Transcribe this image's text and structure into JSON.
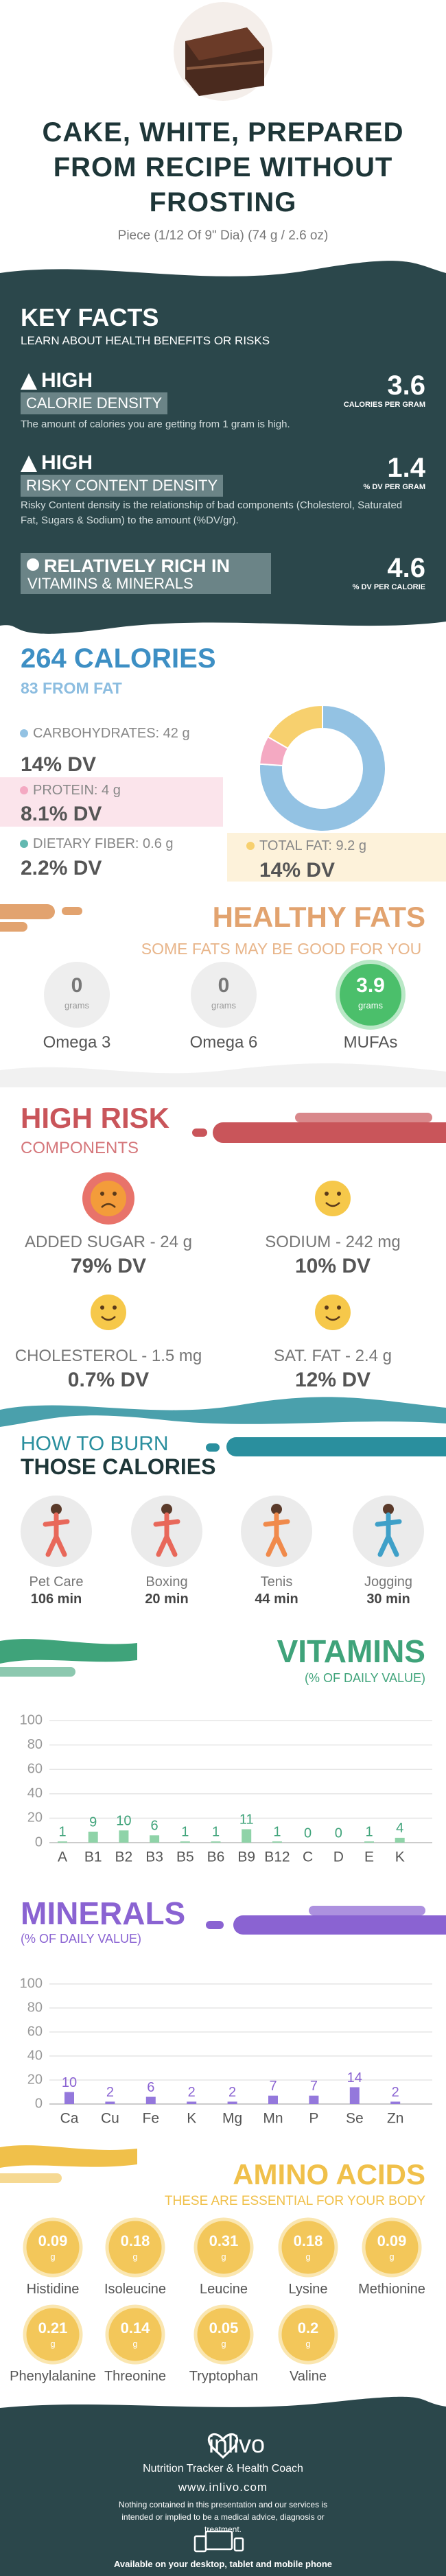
{
  "header": {
    "title": "CAKE, WHITE, PREPARED FROM RECIPE WITHOUT FROSTING",
    "serving": "Piece (1/12 Of 9\" Dia) (74 g / 2.6 oz)"
  },
  "key_facts": {
    "title": "KEY FACTS",
    "subtitle": "LEARN ABOUT HEALTH BENEFITS OR RISKS",
    "facts": [
      {
        "level": "HIGH",
        "name": "CALORIE DENSITY",
        "description": "The amount of calories you are getting from 1 gram is high.",
        "value": "3.6",
        "unit": "CALORIES PER GRAM"
      },
      {
        "level": "HIGH",
        "name": "RISKY CONTENT DENSITY",
        "description": "Risky Content density is the relationship of bad components (Cholesterol, Saturated Fat, Sugars & Sodium) to the amount (%DV/gr).",
        "value": "1.4",
        "unit": "% DV PER GRAM"
      },
      {
        "level": "RELATIVELY RICH IN",
        "name": "VITAMINS & MINERALS",
        "value": "4.6",
        "unit": "% DV PER CALORIE"
      }
    ]
  },
  "calories": {
    "title": "264 CALORIES",
    "subtitle": "83 FROM FAT",
    "nutrients": [
      {
        "label": "CARBOHYDRATES: 42 g",
        "dv": "14% DV"
      },
      {
        "label": "PROTEIN: 4 g",
        "dv": "8.1% DV"
      },
      {
        "label": "DIETARY FIBER: 0.6 g",
        "dv": "2.2% DV"
      },
      {
        "label": "TOTAL FAT: 9.2 g",
        "dv": "14% DV"
      }
    ]
  },
  "healthy_fats": {
    "title": "HEALTHY FATS",
    "subtitle": "SOME FATS MAY BE GOOD FOR YOU",
    "items": [
      {
        "value": "0",
        "unit": "grams",
        "name": "Omega 3"
      },
      {
        "value": "0",
        "unit": "grams",
        "name": "Omega 6"
      },
      {
        "value": "3.9",
        "unit": "grams",
        "name": "MUFAs"
      }
    ]
  },
  "high_risk": {
    "title": "HIGH RISK",
    "subtitle": "COMPONENTS",
    "items": [
      {
        "label": "ADDED SUGAR - 24 g",
        "dv": "79% DV"
      },
      {
        "label": "SODIUM - 242 mg",
        "dv": "10% DV"
      },
      {
        "label": "CHOLESTEROL - 1.5 mg",
        "dv": "0.7% DV"
      },
      {
        "label": "SAT. FAT - 2.4 g",
        "dv": "12% DV"
      }
    ]
  },
  "burn": {
    "title": "HOW TO BURN",
    "title2": "THOSE CALORIES",
    "activities": [
      {
        "name": "Pet Care",
        "time": "106 min"
      },
      {
        "name": "Boxing",
        "time": "20 min"
      },
      {
        "name": "Tenis",
        "time": "44 min"
      },
      {
        "name": "Jogging",
        "time": "30 min"
      }
    ]
  },
  "amino_acids": {
    "title": "AMINO ACIDS",
    "subtitle": "THESE ARE ESSENTIAL FOR YOUR BODY",
    "items": [
      {
        "value": "0.09",
        "unit": "g",
        "name": "Histidine"
      },
      {
        "value": "0.18",
        "unit": "g",
        "name": "Isoleucine"
      },
      {
        "value": "0.31",
        "unit": "g",
        "name": "Leucine"
      },
      {
        "value": "0.18",
        "unit": "g",
        "name": "Lysine"
      },
      {
        "value": "0.09",
        "unit": "g",
        "name": "Methionine"
      },
      {
        "value": "0.21",
        "unit": "g",
        "name": "Phenylalanine"
      },
      {
        "value": "0.14",
        "unit": "g",
        "name": "Threonine"
      },
      {
        "value": "0.05",
        "unit": "g",
        "name": "Tryptophan"
      },
      {
        "value": "0.2",
        "unit": "g",
        "name": "Valine"
      }
    ]
  },
  "footer": {
    "brand": "inlivo",
    "tagline": "Nutrition Tracker & Health Coach",
    "url": "www.inlivo.com",
    "disclaimer": "Nothing contained in this presentation and our services is intended or implied to be a medical advice, diagnosis or treatment.",
    "available": "Available on your desktop, tablet and mobile phone"
  },
  "chart_data": [
    {
      "type": "pie",
      "values": [
        42,
        4,
        9.2
      ],
      "colors": [
        "#93c2e3",
        "#f4a9c2",
        "#f7d06e"
      ]
    },
    {
      "type": "bar",
      "title": "VITAMINS",
      "subtitle": "(% OF DAILY VALUE)",
      "categories": [
        "A",
        "B1",
        "B2",
        "B3",
        "B5",
        "B6",
        "B9",
        "B12",
        "C",
        "D",
        "E",
        "K"
      ],
      "values": [
        1,
        9,
        10,
        6,
        1,
        1,
        11,
        1,
        0,
        0,
        1,
        4
      ],
      "color": "#8fd3a8",
      "label_color": "#3fa37a",
      "ylim": [
        0,
        100
      ],
      "yticks": [
        0,
        20,
        40,
        60,
        80,
        100
      ],
      "grid": true
    },
    {
      "type": "bar",
      "title": "MINERALS",
      "subtitle": "(% OF DAILY VALUE)",
      "categories": [
        "Ca",
        "Cu",
        "Fe",
        "K",
        "Mg",
        "Mn",
        "P",
        "Se",
        "Zn"
      ],
      "values": [
        10,
        2,
        6,
        2,
        2,
        7,
        7,
        14,
        2
      ],
      "color": "#9478dc",
      "label_color": "#8a63d2",
      "ylim": [
        0,
        100
      ],
      "yticks": [
        0,
        20,
        40,
        60,
        80,
        100
      ],
      "grid": true
    }
  ]
}
